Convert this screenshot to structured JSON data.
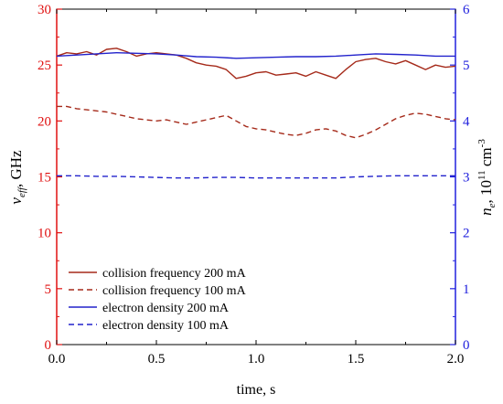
{
  "chart_data": {
    "type": "line",
    "xlabel": "time, s",
    "ylabel_left": {
      "main": "ν",
      "sub": "eff",
      "suffix": ", GHz"
    },
    "ylabel_right": {
      "main": "n",
      "sub": "e",
      "suffix": ", 10",
      "sup": "11",
      "unit": " cm",
      "unit_sup": "-3"
    },
    "xlim": [
      0,
      2.0
    ],
    "ylim_left": [
      0,
      30
    ],
    "ylim_right": [
      0,
      6
    ],
    "x_ticks": [
      "0.0",
      "0.5",
      "1.0",
      "1.5",
      "2.0"
    ],
    "y_ticks_left": [
      "0",
      "5",
      "10",
      "15",
      "20",
      "25",
      "30"
    ],
    "y_ticks_right": [
      "0",
      "1",
      "2",
      "3",
      "4",
      "5",
      "6"
    ],
    "legend_position": "bottom-left",
    "colors": {
      "left_axis": "#e01010",
      "right_axis": "#2020dd",
      "collision": "#a52a1a",
      "density": "#2222cc"
    },
    "series": [
      {
        "name": "collision frequency 200 mA",
        "axis": "left",
        "style": "solid",
        "x": [
          0.0,
          0.05,
          0.1,
          0.15,
          0.2,
          0.25,
          0.3,
          0.35,
          0.4,
          0.45,
          0.5,
          0.55,
          0.6,
          0.65,
          0.7,
          0.75,
          0.8,
          0.85,
          0.9,
          0.95,
          1.0,
          1.05,
          1.1,
          1.15,
          1.2,
          1.25,
          1.3,
          1.35,
          1.4,
          1.45,
          1.5,
          1.55,
          1.6,
          1.65,
          1.7,
          1.75,
          1.8,
          1.85,
          1.9,
          1.95,
          2.0
        ],
        "y": [
          25.8,
          26.1,
          26.0,
          26.2,
          25.9,
          26.4,
          26.5,
          26.2,
          25.8,
          26.0,
          26.1,
          26.0,
          25.9,
          25.6,
          25.2,
          25.0,
          24.9,
          24.6,
          23.8,
          24.0,
          24.3,
          24.4,
          24.1,
          24.2,
          24.3,
          24.0,
          24.4,
          24.1,
          23.8,
          24.6,
          25.3,
          25.5,
          25.6,
          25.3,
          25.1,
          25.4,
          25.0,
          24.6,
          25.0,
          24.8,
          24.9
        ]
      },
      {
        "name": "collision frequency 100 mA",
        "axis": "left",
        "style": "dashed",
        "x": [
          0.0,
          0.05,
          0.1,
          0.15,
          0.2,
          0.25,
          0.3,
          0.35,
          0.4,
          0.45,
          0.5,
          0.55,
          0.6,
          0.65,
          0.7,
          0.75,
          0.8,
          0.85,
          0.9,
          0.95,
          1.0,
          1.05,
          1.1,
          1.15,
          1.2,
          1.25,
          1.3,
          1.35,
          1.4,
          1.45,
          1.5,
          1.55,
          1.6,
          1.65,
          1.7,
          1.75,
          1.8,
          1.85,
          1.9,
          1.95,
          2.0
        ],
        "y": [
          21.3,
          21.3,
          21.1,
          21.0,
          20.9,
          20.8,
          20.6,
          20.4,
          20.2,
          20.1,
          20.0,
          20.1,
          19.9,
          19.7,
          19.9,
          20.1,
          20.3,
          20.5,
          20.0,
          19.5,
          19.3,
          19.2,
          19.0,
          18.8,
          18.7,
          18.9,
          19.2,
          19.3,
          19.1,
          18.7,
          18.5,
          18.8,
          19.2,
          19.7,
          20.2,
          20.5,
          20.7,
          20.6,
          20.4,
          20.2,
          20.1
        ]
      },
      {
        "name": "electron density 200 mA",
        "axis": "right",
        "style": "solid",
        "x": [
          0.0,
          0.1,
          0.2,
          0.3,
          0.4,
          0.5,
          0.6,
          0.7,
          0.8,
          0.9,
          1.0,
          1.1,
          1.2,
          1.3,
          1.4,
          1.5,
          1.6,
          1.7,
          1.8,
          1.9,
          2.0
        ],
        "y": [
          5.16,
          5.18,
          5.2,
          5.22,
          5.21,
          5.2,
          5.18,
          5.15,
          5.14,
          5.12,
          5.13,
          5.14,
          5.15,
          5.15,
          5.16,
          5.18,
          5.2,
          5.19,
          5.18,
          5.16,
          5.16
        ]
      },
      {
        "name": "electron density 100 mA",
        "axis": "right",
        "style": "dashed",
        "x": [
          0.0,
          0.1,
          0.2,
          0.3,
          0.4,
          0.5,
          0.6,
          0.7,
          0.8,
          0.9,
          1.0,
          1.1,
          1.2,
          1.3,
          1.4,
          1.5,
          1.6,
          1.7,
          1.8,
          1.9,
          2.0
        ],
        "y": [
          3.02,
          3.02,
          3.01,
          3.01,
          3.0,
          2.99,
          2.98,
          2.98,
          2.99,
          2.99,
          2.98,
          2.98,
          2.98,
          2.98,
          2.98,
          3.0,
          3.01,
          3.02,
          3.02,
          3.02,
          3.02
        ]
      }
    ]
  }
}
